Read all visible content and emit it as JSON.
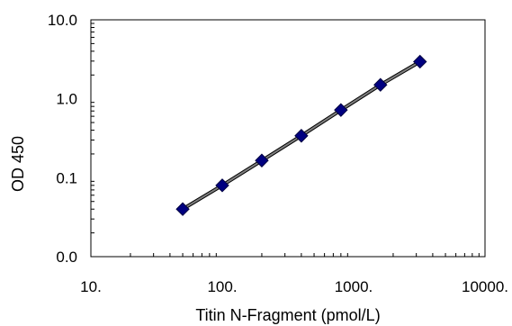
{
  "chart_data": {
    "type": "scatter",
    "title": "",
    "xlabel": "Titin N-Fragment (pmol/L)",
    "ylabel": "OD 450",
    "x_scale": "log",
    "y_scale": "log",
    "xlim": [
      10,
      10000
    ],
    "ylim": [
      0.01,
      10
    ],
    "x_tick_labels": [
      "10.",
      "100.",
      "1000.",
      "10000."
    ],
    "x_tick_values": [
      10,
      100,
      1000,
      10000
    ],
    "y_tick_labels": [
      "0.0",
      "0.1",
      "1.0",
      "10.0"
    ],
    "y_tick_values": [
      0.01,
      0.1,
      1,
      10
    ],
    "grid": false,
    "legend": "none",
    "marker": "diamond",
    "marker_color": "#000080",
    "line_color": "#808080",
    "series": [
      {
        "x": [
          50,
          100,
          200,
          400,
          800,
          1600,
          3200
        ],
        "y": [
          0.04,
          0.08,
          0.165,
          0.34,
          0.72,
          1.5,
          2.95
        ]
      }
    ]
  }
}
